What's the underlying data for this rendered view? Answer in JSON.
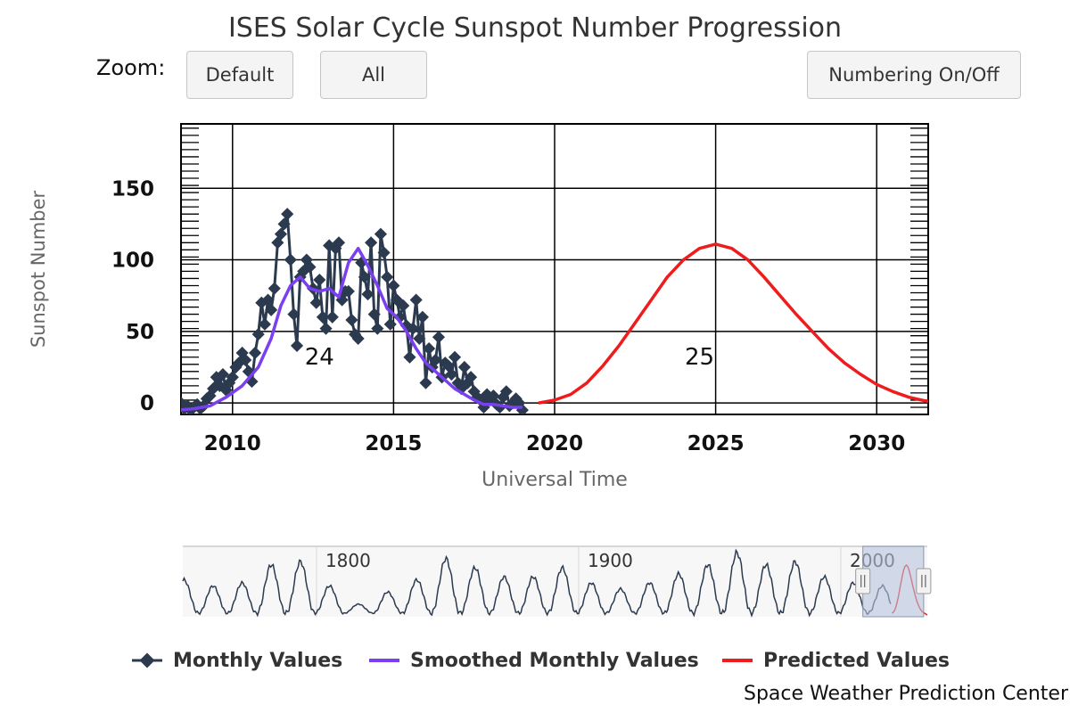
{
  "chart_data": {
    "type": "line",
    "title": "ISES Solar Cycle Sunspot Number Progression",
    "xlabel": "Universal Time",
    "ylabel": "Sunspot Number",
    "xlim": [
      2008.4,
      2031.6
    ],
    "ylim": [
      -8,
      195
    ],
    "xticks": [
      "2010",
      "2015",
      "2020",
      "2025",
      "2030"
    ],
    "yticks": [
      "0",
      "50",
      "100",
      "150"
    ],
    "grid": true,
    "legend": "bottom",
    "cycle_labels": [
      {
        "label": "24",
        "x": 2012.7,
        "y": 27
      },
      {
        "label": "25",
        "x": 2024.5,
        "y": 27
      }
    ],
    "series": [
      {
        "name": "Monthly Values",
        "color": "#2b3a4f",
        "marker": "diamond",
        "x": [
          2008.0,
          2008.1,
          2008.2,
          2008.3,
          2008.4,
          2008.5,
          2008.6,
          2008.7,
          2008.8,
          2008.9,
          2009.0,
          2009.1,
          2009.2,
          2009.3,
          2009.4,
          2009.5,
          2009.6,
          2009.7,
          2009.8,
          2009.9,
          2010.0,
          2010.1,
          2010.2,
          2010.3,
          2010.4,
          2010.5,
          2010.6,
          2010.7,
          2010.8,
          2010.9,
          2011.0,
          2011.1,
          2011.2,
          2011.3,
          2011.4,
          2011.5,
          2011.6,
          2011.7,
          2011.8,
          2011.9,
          2012.0,
          2012.1,
          2012.2,
          2012.3,
          2012.4,
          2012.5,
          2012.6,
          2012.7,
          2012.8,
          2012.9,
          2013.0,
          2013.1,
          2013.2,
          2013.3,
          2013.4,
          2013.5,
          2013.6,
          2013.7,
          2013.8,
          2013.9,
          2014.0,
          2014.1,
          2014.2,
          2014.3,
          2014.4,
          2014.5,
          2014.6,
          2014.7,
          2014.8,
          2014.9,
          2015.0,
          2015.1,
          2015.2,
          2015.3,
          2015.4,
          2015.5,
          2015.6,
          2015.7,
          2015.8,
          2015.9,
          2016.0,
          2016.1,
          2016.2,
          2016.3,
          2016.4,
          2016.5,
          2016.6,
          2016.7,
          2016.8,
          2016.9,
          2017.0,
          2017.1,
          2017.2,
          2017.3,
          2017.4,
          2017.5,
          2017.6,
          2017.7,
          2017.8,
          2017.9,
          2018.0,
          2018.1,
          2018.2,
          2018.3,
          2018.4,
          2018.5,
          2018.6,
          2018.7,
          2018.8,
          2018.9,
          2019.0
        ],
        "y": [
          3,
          -1,
          -5,
          -3,
          0,
          -4,
          -2,
          -5,
          -3,
          -1,
          -4,
          -2,
          3,
          5,
          10,
          18,
          12,
          20,
          9,
          14,
          18,
          25,
          28,
          35,
          30,
          22,
          15,
          35,
          48,
          70,
          55,
          72,
          65,
          80,
          112,
          118,
          125,
          132,
          100,
          62,
          40,
          88,
          92,
          100,
          95,
          80,
          70,
          86,
          60,
          52,
          110,
          60,
          108,
          112,
          72,
          78,
          78,
          58,
          48,
          45,
          98,
          88,
          76,
          112,
          62,
          52,
          118,
          105,
          88,
          55,
          82,
          72,
          60,
          68,
          54,
          32,
          52,
          72,
          45,
          60,
          14,
          38,
          25,
          30,
          46,
          18,
          28,
          26,
          20,
          32,
          14,
          10,
          25,
          14,
          18,
          8,
          4,
          2,
          -3,
          6,
          2,
          5,
          -1,
          -3,
          4,
          8,
          -2,
          0,
          3,
          0,
          -5
        ],
        "note_x_start": 2007.3
      },
      {
        "name": "Smoothed Monthly Values",
        "color": "#7a3ff0",
        "x": [
          2007.3,
          2007.8,
          2008.3,
          2008.8,
          2009.3,
          2009.8,
          2010.3,
          2010.8,
          2011.2,
          2011.5,
          2011.8,
          2012.1,
          2012.4,
          2012.7,
          2013.0,
          2013.3,
          2013.6,
          2013.9,
          2014.2,
          2014.5,
          2014.8,
          2015.1,
          2015.4,
          2015.7,
          2016.0,
          2016.3,
          2016.6,
          2016.9,
          2017.2,
          2017.5,
          2017.8,
          2018.1,
          2018.4,
          2018.7,
          2019.0
        ],
        "y": [
          -2,
          -4,
          -5,
          -4,
          -2,
          4,
          12,
          25,
          45,
          68,
          82,
          88,
          80,
          78,
          80,
          74,
          98,
          108,
          96,
          82,
          66,
          60,
          50,
          38,
          28,
          22,
          16,
          10,
          6,
          2,
          -1,
          -1,
          -2,
          -3,
          -3
        ]
      },
      {
        "name": "Predicted Values",
        "color": "#ee1c1c",
        "x": [
          2019.5,
          2020.0,
          2020.5,
          2021.0,
          2021.5,
          2022.0,
          2022.5,
          2023.0,
          2023.5,
          2024.0,
          2024.5,
          2025.0,
          2025.5,
          2026.0,
          2026.5,
          2027.0,
          2027.5,
          2028.0,
          2028.5,
          2029.0,
          2029.5,
          2030.0,
          2030.5,
          2031.0,
          2031.6
        ],
        "y": [
          0,
          2,
          6,
          14,
          26,
          40,
          56,
          72,
          88,
          100,
          108,
          111,
          108,
          100,
          88,
          75,
          62,
          50,
          38,
          28,
          20,
          13,
          8,
          4,
          1
        ]
      }
    ],
    "navigator": {
      "xlim": [
        1749,
        2033
      ],
      "xticks": [
        "1800",
        "1900",
        "2000"
      ],
      "selection": [
        2008.4,
        2031.6
      ]
    }
  },
  "controls": {
    "zoom_label": "Zoom:",
    "default_label": "Default",
    "all_label": "All",
    "numbering_label": "Numbering On/Off"
  },
  "legend": {
    "monthly": "Monthly Values",
    "smoothed": "Smoothed Monthly Values",
    "predicted": "Predicted Values"
  },
  "credit": "Space Weather Prediction Center",
  "colors": {
    "monthly": "#2b3a4f",
    "smoothed": "#7a3ff0",
    "predicted": "#ee1c1c",
    "navigator_fill": "#b8c4de"
  }
}
